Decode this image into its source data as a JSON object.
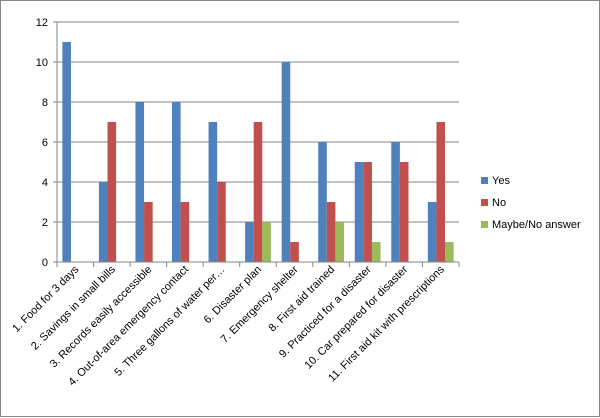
{
  "chart_data": {
    "type": "bar",
    "title": "",
    "xlabel": "",
    "ylabel": "",
    "ylim": [
      0,
      12
    ],
    "yticks": [
      0,
      2,
      4,
      6,
      8,
      10,
      12
    ],
    "grid": true,
    "legend_position": "right",
    "categories": [
      "1. Food for 3 days",
      "2. Savings in small bills",
      "3. Records easily accessible",
      "4. Out-of-area emergency contact",
      "5. Three gallons of water per…",
      "6. Disaster plan",
      "7. Emergency shelter",
      "8. First aid trained",
      "9. Practiced for a disaster",
      "10. Car prepared for disaster",
      "11. First aid kit with prescriptions"
    ],
    "series": [
      {
        "name": "Yes",
        "color": "#4F81BD",
        "values": [
          11,
          4,
          8,
          8,
          7,
          2,
          10,
          6,
          5,
          6,
          3
        ]
      },
      {
        "name": "No",
        "color": "#C0504D",
        "values": [
          0,
          7,
          3,
          3,
          4,
          7,
          1,
          3,
          5,
          5,
          7
        ]
      },
      {
        "name": "Maybe/No answer",
        "color": "#9BBB59",
        "values": [
          0,
          0,
          0,
          0,
          0,
          2,
          0,
          2,
          1,
          0,
          1
        ]
      }
    ]
  }
}
